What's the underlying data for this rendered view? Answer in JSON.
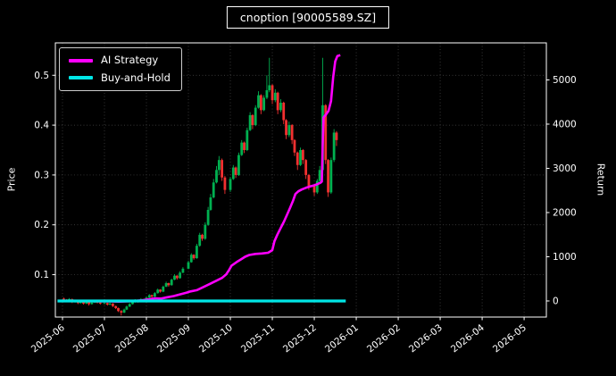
{
  "chart_data": {
    "type": "candlestick",
    "title": "cnoption [90005589.SZ]",
    "colors": {
      "background": "#000000",
      "frame": "#ffffff",
      "text": "#ffffff",
      "grid": "#4a4a4a"
    },
    "legend": [
      {
        "label": "AI Strategy",
        "color": "#ff00ff"
      },
      {
        "label": "Buy-and-Hold",
        "color": "#00e6e6"
      }
    ],
    "axes": {
      "left": {
        "label": "Price",
        "ticks": [
          "0.1",
          "0.2",
          "0.3",
          "0.4",
          "0.5"
        ],
        "tick_values": [
          0.1,
          0.2,
          0.3,
          0.4,
          0.5
        ],
        "range": [
          0.015,
          0.565
        ]
      },
      "right": {
        "label": "Return",
        "ticks": [
          "0",
          "1000",
          "2000",
          "3000",
          "4000",
          "5000"
        ],
        "tick_values": [
          0,
          1000,
          2000,
          3000,
          4000,
          5000
        ],
        "range": [
          -364,
          5838
        ]
      },
      "x": {
        "ticks": [
          "2025-06",
          "2025-07",
          "2025-08",
          "2025-09",
          "2025-10",
          "2025-11",
          "2025-12",
          "2026-01",
          "2026-02",
          "2026-03",
          "2026-04",
          "2026-05"
        ],
        "tick_values": [
          0,
          1,
          2,
          3,
          4,
          5,
          6,
          7,
          8,
          9,
          10,
          11
        ],
        "unit": "months since 2025-06-01",
        "range": [
          -0.17,
          11.53
        ]
      }
    },
    "series": [
      {
        "name": "AI Strategy",
        "type": "line",
        "axis": "right",
        "color": "#ff00ff",
        "line_width": 2.6,
        "points": [
          [
            0.03,
            0
          ],
          [
            0.5,
            -4
          ],
          [
            0.9,
            -6
          ],
          [
            1.2,
            -10
          ],
          [
            1.35,
            -14
          ],
          [
            1.5,
            -10
          ],
          [
            1.7,
            -2
          ],
          [
            1.9,
            15
          ],
          [
            2.05,
            35
          ],
          [
            2.2,
            60
          ],
          [
            2.35,
            55
          ],
          [
            2.5,
            85
          ],
          [
            2.65,
            110
          ],
          [
            2.8,
            150
          ],
          [
            2.95,
            185
          ],
          [
            3.05,
            215
          ],
          [
            3.2,
            245
          ],
          [
            3.35,
            310
          ],
          [
            3.5,
            380
          ],
          [
            3.65,
            450
          ],
          [
            3.8,
            520
          ],
          [
            3.9,
            600
          ],
          [
            3.97,
            700
          ],
          [
            4.03,
            800
          ],
          [
            4.15,
            880
          ],
          [
            4.25,
            940
          ],
          [
            4.35,
            1000
          ],
          [
            4.45,
            1040
          ],
          [
            4.6,
            1065
          ],
          [
            4.75,
            1075
          ],
          [
            4.9,
            1090
          ],
          [
            5.0,
            1150
          ],
          [
            5.05,
            1350
          ],
          [
            5.12,
            1500
          ],
          [
            5.2,
            1650
          ],
          [
            5.28,
            1800
          ],
          [
            5.35,
            1950
          ],
          [
            5.42,
            2100
          ],
          [
            5.5,
            2280
          ],
          [
            5.55,
            2420
          ],
          [
            5.62,
            2480
          ],
          [
            5.7,
            2520
          ],
          [
            5.8,
            2560
          ],
          [
            5.9,
            2590
          ],
          [
            6.0,
            2615
          ],
          [
            6.08,
            2645
          ],
          [
            6.15,
            2675
          ],
          [
            6.18,
            2700
          ],
          [
            6.2,
            3500
          ],
          [
            6.22,
            4150
          ],
          [
            6.28,
            4220
          ],
          [
            6.34,
            4300
          ],
          [
            6.4,
            4520
          ],
          [
            6.45,
            5060
          ],
          [
            6.5,
            5420
          ],
          [
            6.55,
            5540
          ],
          [
            6.62,
            5560
          ]
        ]
      },
      {
        "name": "Buy-and-Hold",
        "type": "line",
        "axis": "right",
        "color": "#00e6e6",
        "line_width": 3.2,
        "points": [
          [
            -0.12,
            0
          ],
          [
            6.75,
            0
          ]
        ]
      },
      {
        "name": "OHLC",
        "type": "candlestick",
        "axis": "left",
        "up_color": "#00b050",
        "down_color": "#f23030",
        "candles": [
          [
            0.03,
            0.052,
            0.054,
            0.047,
            0.05
          ],
          [
            0.1,
            0.05,
            0.051,
            0.045,
            0.047
          ],
          [
            0.16,
            0.047,
            0.053,
            0.046,
            0.051
          ],
          [
            0.23,
            0.051,
            0.052,
            0.043,
            0.045
          ],
          [
            0.3,
            0.045,
            0.05,
            0.044,
            0.048
          ],
          [
            0.37,
            0.048,
            0.049,
            0.041,
            0.043
          ],
          [
            0.43,
            0.043,
            0.048,
            0.042,
            0.046
          ],
          [
            0.5,
            0.046,
            0.047,
            0.04,
            0.042
          ],
          [
            0.57,
            0.042,
            0.047,
            0.041,
            0.045
          ],
          [
            0.63,
            0.045,
            0.046,
            0.038,
            0.041
          ],
          [
            0.7,
            0.041,
            0.046,
            0.04,
            0.044
          ],
          [
            0.77,
            0.044,
            0.049,
            0.043,
            0.047
          ],
          [
            0.83,
            0.047,
            0.048,
            0.042,
            0.044
          ],
          [
            0.9,
            0.044,
            0.045,
            0.04,
            0.042
          ],
          [
            1.0,
            0.042,
            0.045,
            0.041,
            0.043
          ],
          [
            1.07,
            0.043,
            0.044,
            0.038,
            0.04
          ],
          [
            1.13,
            0.04,
            0.044,
            0.039,
            0.042
          ],
          [
            1.2,
            0.042,
            0.043,
            0.035,
            0.037
          ],
          [
            1.27,
            0.037,
            0.038,
            0.031,
            0.033
          ],
          [
            1.33,
            0.033,
            0.034,
            0.025,
            0.027
          ],
          [
            1.4,
            0.027,
            0.029,
            0.018,
            0.024
          ],
          [
            1.47,
            0.024,
            0.032,
            0.023,
            0.03
          ],
          [
            1.53,
            0.03,
            0.038,
            0.029,
            0.036
          ],
          [
            1.6,
            0.036,
            0.043,
            0.035,
            0.041
          ],
          [
            1.67,
            0.041,
            0.047,
            0.04,
            0.045
          ],
          [
            1.73,
            0.045,
            0.051,
            0.044,
            0.049
          ],
          [
            1.8,
            0.049,
            0.05,
            0.044,
            0.046
          ],
          [
            1.87,
            0.046,
            0.053,
            0.045,
            0.051
          ],
          [
            2.0,
            0.051,
            0.056,
            0.05,
            0.054
          ],
          [
            2.07,
            0.054,
            0.061,
            0.053,
            0.059
          ],
          [
            2.13,
            0.059,
            0.06,
            0.054,
            0.056
          ],
          [
            2.2,
            0.056,
            0.065,
            0.055,
            0.063
          ],
          [
            2.27,
            0.063,
            0.072,
            0.062,
            0.07
          ],
          [
            2.33,
            0.07,
            0.071,
            0.064,
            0.066
          ],
          [
            2.4,
            0.066,
            0.078,
            0.065,
            0.076
          ],
          [
            2.47,
            0.076,
            0.086,
            0.075,
            0.083
          ],
          [
            2.53,
            0.083,
            0.084,
            0.076,
            0.079
          ],
          [
            2.6,
            0.079,
            0.092,
            0.078,
            0.09
          ],
          [
            2.67,
            0.09,
            0.101,
            0.089,
            0.098
          ],
          [
            2.73,
            0.098,
            0.099,
            0.09,
            0.093
          ],
          [
            2.8,
            0.093,
            0.107,
            0.092,
            0.104
          ],
          [
            2.87,
            0.104,
            0.115,
            0.103,
            0.112
          ],
          [
            3.0,
            0.112,
            0.128,
            0.111,
            0.125
          ],
          [
            3.07,
            0.125,
            0.143,
            0.124,
            0.14
          ],
          [
            3.13,
            0.14,
            0.141,
            0.13,
            0.133
          ],
          [
            3.2,
            0.133,
            0.162,
            0.132,
            0.158
          ],
          [
            3.27,
            0.158,
            0.184,
            0.156,
            0.18
          ],
          [
            3.33,
            0.18,
            0.182,
            0.168,
            0.172
          ],
          [
            3.4,
            0.172,
            0.205,
            0.17,
            0.2
          ],
          [
            3.47,
            0.2,
            0.236,
            0.198,
            0.23
          ],
          [
            3.53,
            0.23,
            0.262,
            0.228,
            0.255
          ],
          [
            3.6,
            0.255,
            0.292,
            0.253,
            0.285
          ],
          [
            3.67,
            0.285,
            0.318,
            0.283,
            0.31
          ],
          [
            3.73,
            0.31,
            0.338,
            0.3,
            0.33
          ],
          [
            3.8,
            0.33,
            0.333,
            0.288,
            0.295
          ],
          [
            3.87,
            0.295,
            0.298,
            0.262,
            0.27
          ],
          [
            4.0,
            0.27,
            0.296,
            0.266,
            0.292
          ],
          [
            4.07,
            0.292,
            0.32,
            0.29,
            0.315
          ],
          [
            4.13,
            0.315,
            0.317,
            0.294,
            0.3
          ],
          [
            4.2,
            0.3,
            0.345,
            0.298,
            0.34
          ],
          [
            4.27,
            0.34,
            0.37,
            0.338,
            0.365
          ],
          [
            4.33,
            0.365,
            0.367,
            0.344,
            0.35
          ],
          [
            4.4,
            0.35,
            0.395,
            0.348,
            0.39
          ],
          [
            4.47,
            0.39,
            0.426,
            0.388,
            0.42
          ],
          [
            4.53,
            0.42,
            0.422,
            0.392,
            0.4
          ],
          [
            4.6,
            0.4,
            0.44,
            0.398,
            0.435
          ],
          [
            4.67,
            0.435,
            0.468,
            0.433,
            0.46
          ],
          [
            4.73,
            0.46,
            0.462,
            0.422,
            0.43
          ],
          [
            4.8,
            0.43,
            0.46,
            0.428,
            0.455
          ],
          [
            4.87,
            0.455,
            0.5,
            0.452,
            0.47
          ],
          [
            4.93,
            0.47,
            0.535,
            0.466,
            0.48
          ],
          [
            5.0,
            0.48,
            0.482,
            0.442,
            0.45
          ],
          [
            5.07,
            0.45,
            0.472,
            0.446,
            0.465
          ],
          [
            5.13,
            0.465,
            0.467,
            0.422,
            0.43
          ],
          [
            5.2,
            0.43,
            0.452,
            0.426,
            0.445
          ],
          [
            5.27,
            0.445,
            0.447,
            0.402,
            0.41
          ],
          [
            5.33,
            0.41,
            0.412,
            0.372,
            0.38
          ],
          [
            5.4,
            0.38,
            0.407,
            0.376,
            0.4
          ],
          [
            5.47,
            0.4,
            0.402,
            0.362,
            0.37
          ],
          [
            5.53,
            0.37,
            0.372,
            0.338,
            0.345
          ],
          [
            5.6,
            0.345,
            0.347,
            0.31,
            0.32
          ],
          [
            5.67,
            0.32,
            0.355,
            0.318,
            0.35
          ],
          [
            5.73,
            0.35,
            0.352,
            0.322,
            0.33
          ],
          [
            5.8,
            0.33,
            0.332,
            0.292,
            0.3
          ],
          [
            5.87,
            0.3,
            0.302,
            0.27,
            0.278
          ],
          [
            6.0,
            0.278,
            0.28,
            0.258,
            0.265
          ],
          [
            6.07,
            0.265,
            0.292,
            0.262,
            0.288
          ],
          [
            6.13,
            0.288,
            0.318,
            0.286,
            0.31
          ],
          [
            6.2,
            0.31,
            0.535,
            0.308,
            0.44
          ],
          [
            6.27,
            0.44,
            0.442,
            0.322,
            0.33
          ],
          [
            6.33,
            0.33,
            0.332,
            0.256,
            0.265
          ],
          [
            6.4,
            0.265,
            0.335,
            0.262,
            0.33
          ],
          [
            6.47,
            0.33,
            0.392,
            0.326,
            0.385
          ],
          [
            6.53,
            0.385,
            0.388,
            0.358,
            0.37
          ]
        ]
      }
    ]
  }
}
